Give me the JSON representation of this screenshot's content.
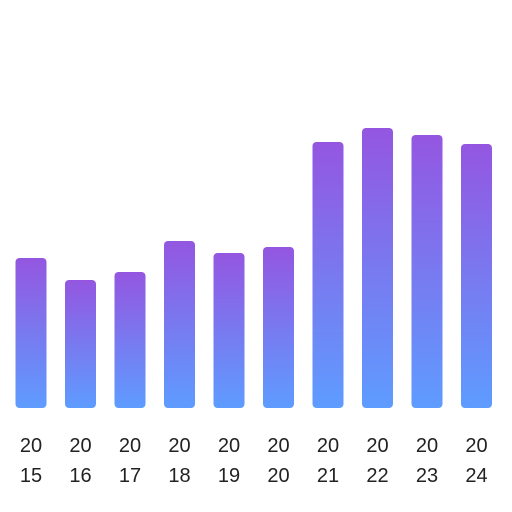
{
  "chart_data": {
    "type": "bar",
    "categories": [
      "2015",
      "2016",
      "2017",
      "2018",
      "2019",
      "2020",
      "2021",
      "2022",
      "2023",
      "2024"
    ],
    "tick_labels": [
      [
        "20",
        "15"
      ],
      [
        "20",
        "16"
      ],
      [
        "20",
        "17"
      ],
      [
        "20",
        "18"
      ],
      [
        "20",
        "19"
      ],
      [
        "20",
        "20"
      ],
      [
        "20",
        "21"
      ],
      [
        "20",
        "22"
      ],
      [
        "20",
        "23"
      ],
      [
        "20",
        "24"
      ]
    ],
    "values": [
      150,
      128,
      136,
      167,
      155,
      161,
      266,
      280,
      273,
      264
    ],
    "ylim": [
      0,
      300
    ],
    "grid": false,
    "legend": "none",
    "colors": {
      "bar_top": "#9456e0",
      "bar_bottom": "#5e9cff",
      "text": "#222222",
      "background": "#ffffff"
    }
  }
}
